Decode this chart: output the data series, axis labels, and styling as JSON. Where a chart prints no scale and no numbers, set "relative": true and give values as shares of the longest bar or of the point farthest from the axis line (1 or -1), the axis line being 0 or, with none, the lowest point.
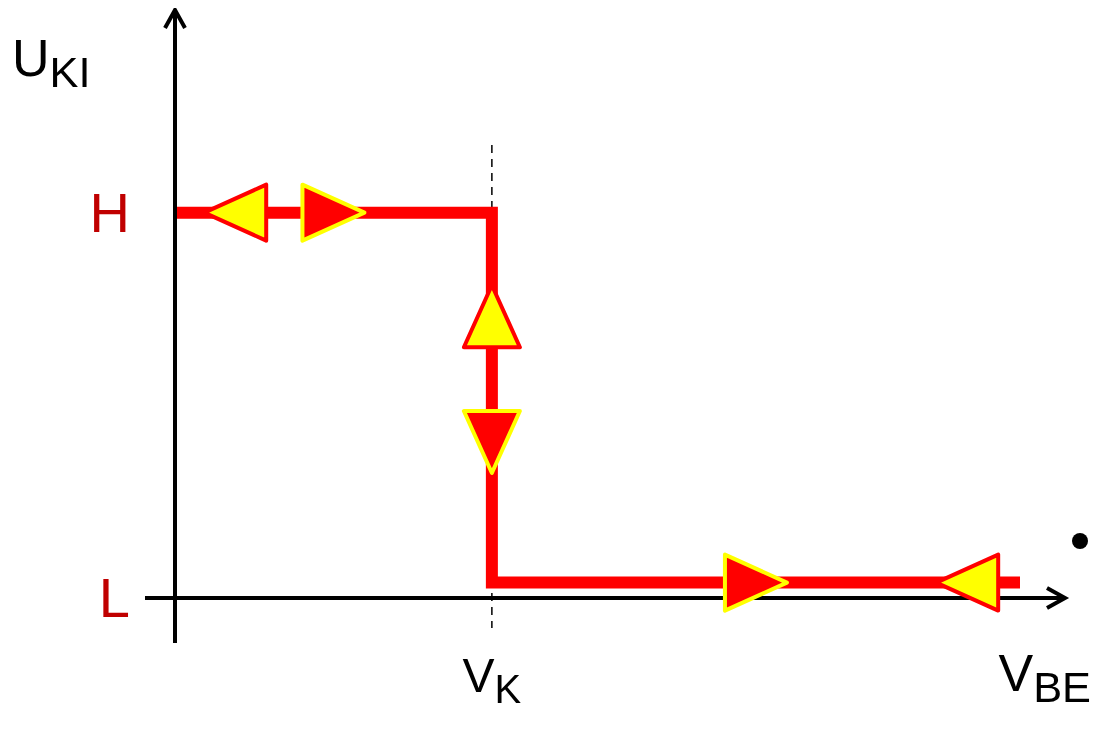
{
  "chart_data": {
    "type": "step",
    "xlabel": "V$_{BE}$",
    "ylabel": "U$_{KI}$",
    "relative": true,
    "categories": [
      null,
      null,
      null,
      null,
      null,
      null,
      null,
      null,
      null
    ],
    "series": [
      {
        "color": "#ff0000",
        "values": [
          1,
          1,
          1,
          0.04,
          0.04,
          0.04,
          0.04,
          0.04,
          0.04
        ]
      }
    ],
    "annotations": [
      "H",
      "L"
    ],
    "ref_lines": [
      {
        "axis": "x",
        "label": "V$_{K}$",
        "color": "#000000",
        "line_style": "dashed"
      }
    ],
    "marker": "none",
    "line_style": "solid"
  }
}
